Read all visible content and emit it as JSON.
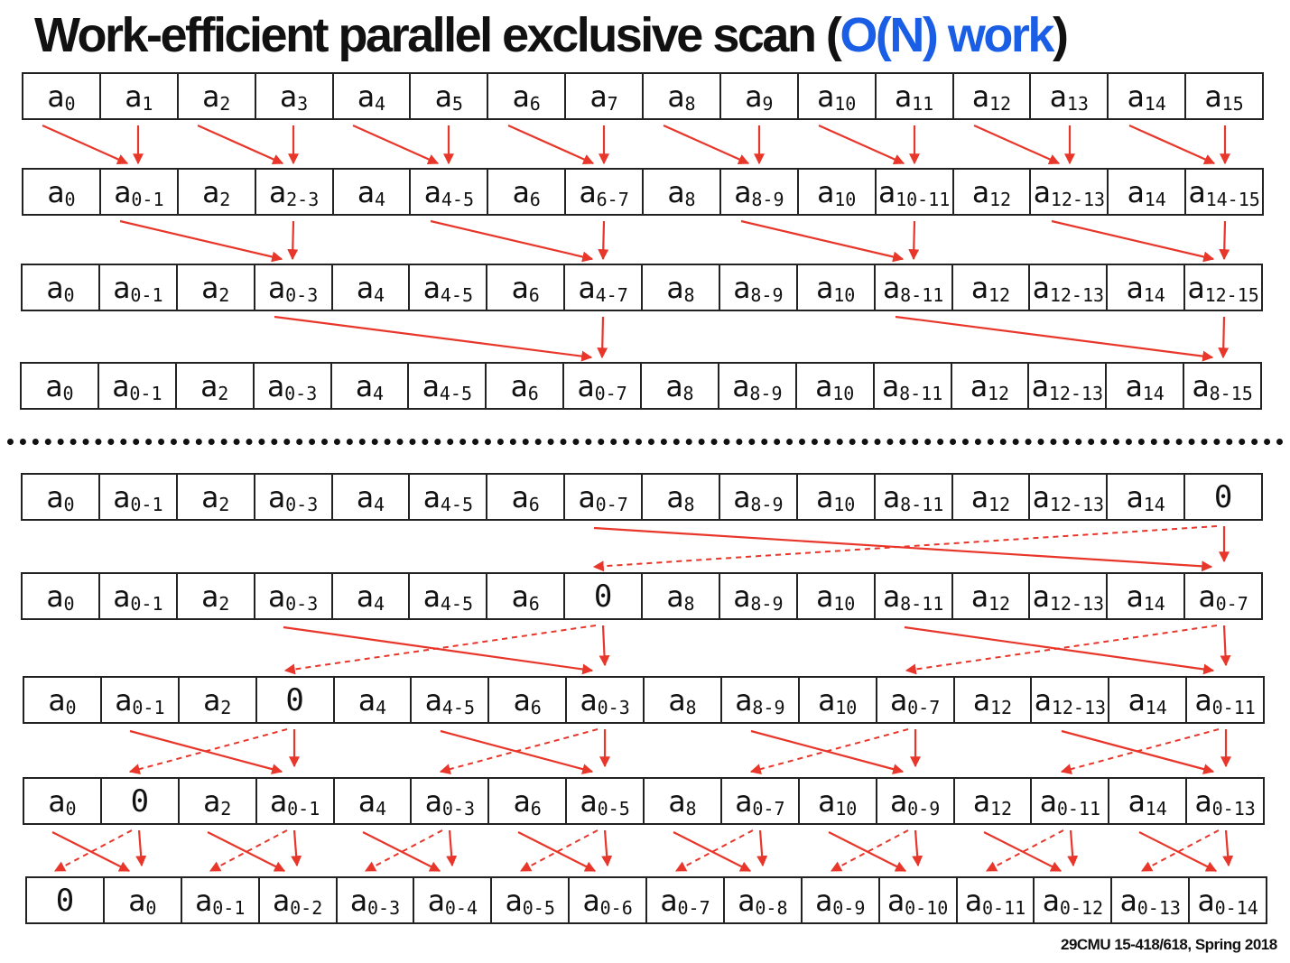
{
  "title": {
    "main": "Work-efficient parallel exclusive scan (",
    "accent": "O(N) work",
    "close": ")"
  },
  "footer": "29CMU 15-418/618, Spring 2018",
  "colors": {
    "arrow": "#e8362a",
    "accent": "#1a5ee6",
    "border": "#222222"
  },
  "upsweep_rows": [
    {
      "cells": [
        [
          "a",
          "0"
        ],
        [
          "a",
          "1"
        ],
        [
          "a",
          "2"
        ],
        [
          "a",
          "3"
        ],
        [
          "a",
          "4"
        ],
        [
          "a",
          "5"
        ],
        [
          "a",
          "6"
        ],
        [
          "a",
          "7"
        ],
        [
          "a",
          "8"
        ],
        [
          "a",
          "9"
        ],
        [
          "a",
          "10"
        ],
        [
          "a",
          "11"
        ],
        [
          "a",
          "12"
        ],
        [
          "a",
          "13"
        ],
        [
          "a",
          "14"
        ],
        [
          "a",
          "15"
        ]
      ]
    },
    {
      "cells": [
        [
          "a",
          "0"
        ],
        [
          "a",
          "0-1"
        ],
        [
          "a",
          "2"
        ],
        [
          "a",
          "2-3"
        ],
        [
          "a",
          "4"
        ],
        [
          "a",
          "4-5"
        ],
        [
          "a",
          "6"
        ],
        [
          "a",
          "6-7"
        ],
        [
          "a",
          "8"
        ],
        [
          "a",
          "8-9"
        ],
        [
          "a",
          "10"
        ],
        [
          "a",
          "10-11"
        ],
        [
          "a",
          "12"
        ],
        [
          "a",
          "12-13"
        ],
        [
          "a",
          "14"
        ],
        [
          "a",
          "14-15"
        ]
      ]
    },
    {
      "cells": [
        [
          "a",
          "0"
        ],
        [
          "a",
          "0-1"
        ],
        [
          "a",
          "2"
        ],
        [
          "a",
          "0-3"
        ],
        [
          "a",
          "4"
        ],
        [
          "a",
          "4-5"
        ],
        [
          "a",
          "6"
        ],
        [
          "a",
          "4-7"
        ],
        [
          "a",
          "8"
        ],
        [
          "a",
          "8-9"
        ],
        [
          "a",
          "10"
        ],
        [
          "a",
          "8-11"
        ],
        [
          "a",
          "12"
        ],
        [
          "a",
          "12-13"
        ],
        [
          "a",
          "14"
        ],
        [
          "a",
          "12-15"
        ]
      ]
    },
    {
      "cells": [
        [
          "a",
          "0"
        ],
        [
          "a",
          "0-1"
        ],
        [
          "a",
          "2"
        ],
        [
          "a",
          "0-3"
        ],
        [
          "a",
          "4"
        ],
        [
          "a",
          "4-5"
        ],
        [
          "a",
          "6"
        ],
        [
          "a",
          "0-7"
        ],
        [
          "a",
          "8"
        ],
        [
          "a",
          "8-9"
        ],
        [
          "a",
          "10"
        ],
        [
          "a",
          "8-11"
        ],
        [
          "a",
          "12"
        ],
        [
          "a",
          "12-13"
        ],
        [
          "a",
          "14"
        ],
        [
          "a",
          "8-15"
        ]
      ]
    }
  ],
  "downsweep_rows": [
    {
      "cells": [
        [
          "a",
          "0"
        ],
        [
          "a",
          "0-1"
        ],
        [
          "a",
          "2"
        ],
        [
          "a",
          "0-3"
        ],
        [
          "a",
          "4"
        ],
        [
          "a",
          "4-5"
        ],
        [
          "a",
          "6"
        ],
        [
          "a",
          "0-7"
        ],
        [
          "a",
          "8"
        ],
        [
          "a",
          "8-9"
        ],
        [
          "a",
          "10"
        ],
        [
          "a",
          "8-11"
        ],
        [
          "a",
          "12"
        ],
        [
          "a",
          "12-13"
        ],
        [
          "a",
          "14"
        ],
        [
          "0",
          ""
        ]
      ]
    },
    {
      "cells": [
        [
          "a",
          "0"
        ],
        [
          "a",
          "0-1"
        ],
        [
          "a",
          "2"
        ],
        [
          "a",
          "0-3"
        ],
        [
          "a",
          "4"
        ],
        [
          "a",
          "4-5"
        ],
        [
          "a",
          "6"
        ],
        [
          "0",
          ""
        ],
        [
          "a",
          "8"
        ],
        [
          "a",
          "8-9"
        ],
        [
          "a",
          "10"
        ],
        [
          "a",
          "8-11"
        ],
        [
          "a",
          "12"
        ],
        [
          "a",
          "12-13"
        ],
        [
          "a",
          "14"
        ],
        [
          "a",
          "0-7"
        ]
      ]
    },
    {
      "cells": [
        [
          "a",
          "0"
        ],
        [
          "a",
          "0-1"
        ],
        [
          "a",
          "2"
        ],
        [
          "0",
          ""
        ],
        [
          "a",
          "4"
        ],
        [
          "a",
          "4-5"
        ],
        [
          "a",
          "6"
        ],
        [
          "a",
          "0-3"
        ],
        [
          "a",
          "8"
        ],
        [
          "a",
          "8-9"
        ],
        [
          "a",
          "10"
        ],
        [
          "a",
          "0-7"
        ],
        [
          "a",
          "12"
        ],
        [
          "a",
          "12-13"
        ],
        [
          "a",
          "14"
        ],
        [
          "a",
          "0-11"
        ]
      ]
    },
    {
      "cells": [
        [
          "a",
          "0"
        ],
        [
          "0",
          ""
        ],
        [
          "a",
          "2"
        ],
        [
          "a",
          "0-1"
        ],
        [
          "a",
          "4"
        ],
        [
          "a",
          "0-3"
        ],
        [
          "a",
          "6"
        ],
        [
          "a",
          "0-5"
        ],
        [
          "a",
          "8"
        ],
        [
          "a",
          "0-7"
        ],
        [
          "a",
          "10"
        ],
        [
          "a",
          "0-9"
        ],
        [
          "a",
          "12"
        ],
        [
          "a",
          "0-11"
        ],
        [
          "a",
          "14"
        ],
        [
          "a",
          "0-13"
        ]
      ]
    },
    {
      "cells": [
        [
          "0",
          ""
        ],
        [
          "a",
          "0"
        ],
        [
          "a",
          "0-1"
        ],
        [
          "a",
          "0-2"
        ],
        [
          "a",
          "0-3"
        ],
        [
          "a",
          "0-4"
        ],
        [
          "a",
          "0-5"
        ],
        [
          "a",
          "0-6"
        ],
        [
          "a",
          "0-7"
        ],
        [
          "a",
          "0-8"
        ],
        [
          "a",
          "0-9"
        ],
        [
          "a",
          "0-10"
        ],
        [
          "a",
          "0-11"
        ],
        [
          "a",
          "0-12"
        ],
        [
          "a",
          "0-13"
        ],
        [
          "a",
          "0-14"
        ]
      ]
    }
  ]
}
